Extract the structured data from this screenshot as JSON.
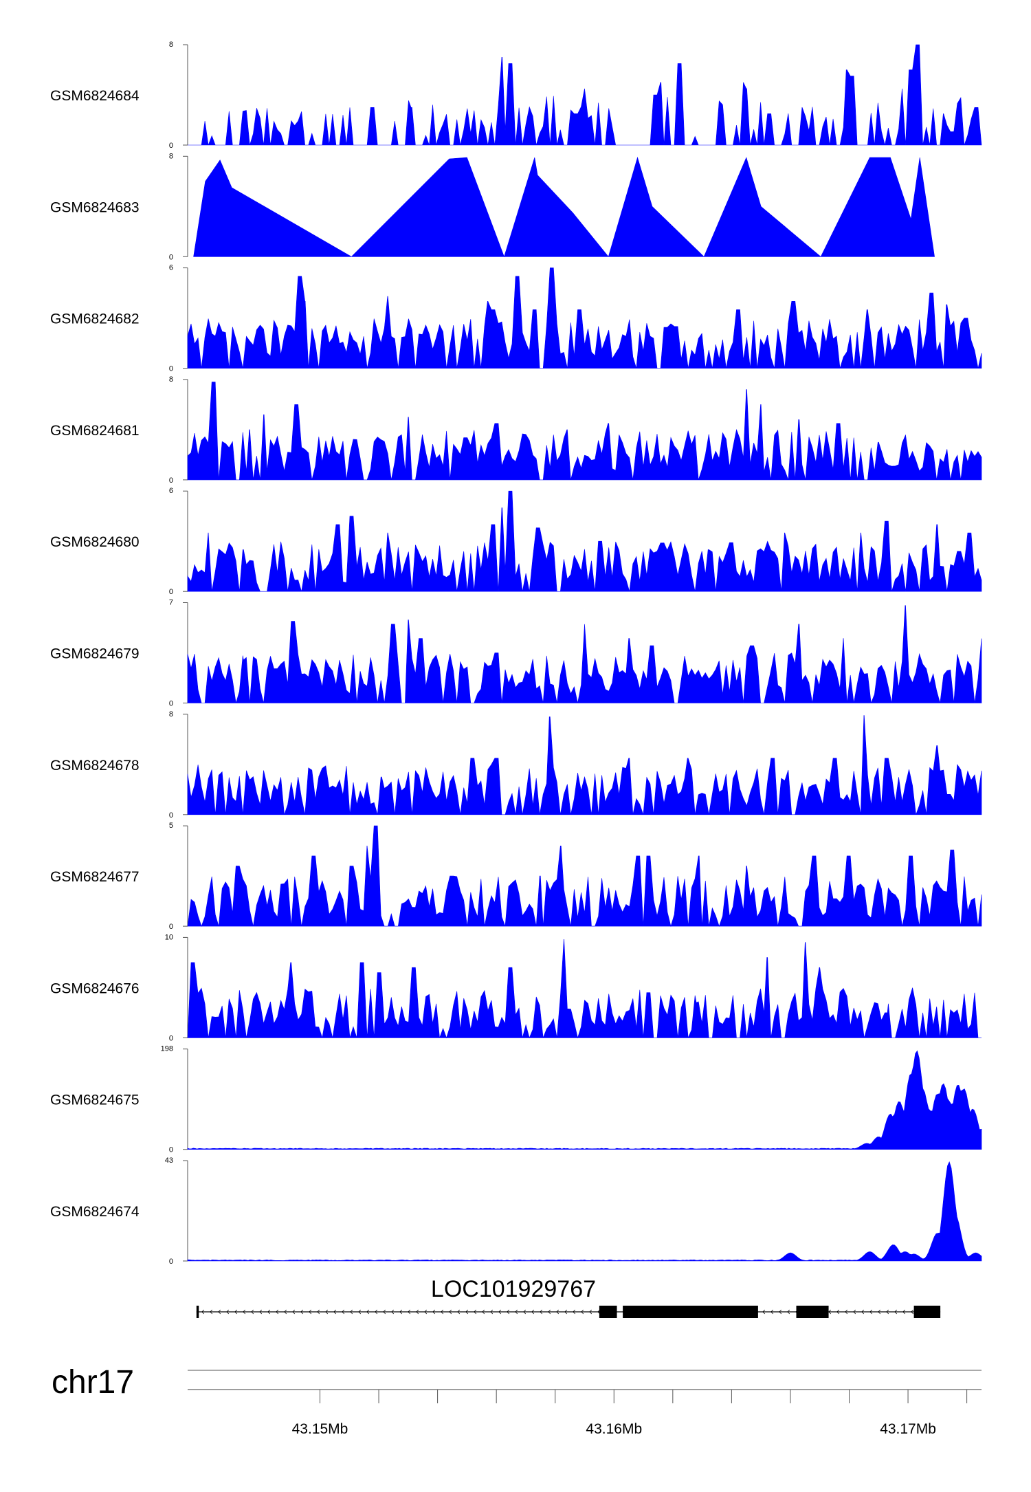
{
  "chart_data": {
    "type": "area",
    "color": "#0000ff",
    "chromosome": "chr17",
    "xlim": [
      43.1455,
      43.1725
    ],
    "x_axis_labels": [
      {
        "value": 43.15,
        "label": "43.15Mb"
      },
      {
        "value": 43.16,
        "label": "43.16Mb"
      },
      {
        "value": 43.17,
        "label": "43.17Mb"
      }
    ],
    "x_minor_ticks": [
      43.152,
      43.154,
      43.156,
      43.158,
      43.162,
      43.164,
      43.166,
      43.168,
      43.172
    ],
    "gene": {
      "name": "LOC101929767",
      "strand": "-",
      "start": 43.1458,
      "end": 43.1711,
      "exons": [
        [
          43.1458,
          43.14588
        ],
        [
          43.1595,
          43.1601
        ],
        [
          43.1603,
          43.1649
        ],
        [
          43.1662,
          43.1673
        ],
        [
          43.1702,
          43.1711
        ]
      ]
    },
    "tracks": [
      {
        "name": "GSM6824684",
        "ymax": 8,
        "ymin": 0,
        "label_max": "8",
        "label_min": "0",
        "profile": "sparse",
        "start": 43.1455,
        "end": 43.1725,
        "peaks": [
          [
            43.1518,
            3
          ],
          [
            43.1531,
            3
          ],
          [
            43.1562,
            7.0
          ],
          [
            43.1565,
            6.5
          ],
          [
            43.1587,
            2.5
          ],
          [
            43.159,
            4.5
          ],
          [
            43.1614,
            4.0
          ],
          [
            43.1616,
            5.0
          ],
          [
            43.1622,
            6.5
          ],
          [
            43.1644,
            5.0
          ],
          [
            43.1645,
            4.5
          ],
          [
            43.1653,
            2.5
          ],
          [
            43.1664,
            3.0
          ],
          [
            43.1679,
            6.0
          ],
          [
            43.1681,
            5.5
          ],
          [
            43.1698,
            4.5
          ],
          [
            43.1701,
            6.0
          ],
          [
            43.1703,
            8.0
          ],
          [
            43.1712,
            2.5
          ],
          [
            43.1723,
            3.0
          ]
        ]
      },
      {
        "name": "GSM6824683",
        "ymax": 8,
        "ymin": 0,
        "label_max": "8",
        "label_min": "0",
        "profile": "triangles",
        "start": 43.1457,
        "end": 43.1709,
        "peaks": [
          [
            43.1461,
            6.0
          ],
          [
            43.1466,
            7.7
          ],
          [
            43.147,
            5.5
          ],
          [
            43.1544,
            7.8
          ],
          [
            43.155,
            7.9
          ],
          [
            43.1573,
            7.9
          ],
          [
            43.1574,
            6.5
          ],
          [
            43.1586,
            3.5
          ],
          [
            43.1608,
            7.9
          ],
          [
            43.1613,
            4.0
          ],
          [
            43.1645,
            7.9
          ],
          [
            43.165,
            4.0
          ],
          [
            43.1687,
            7.9
          ],
          [
            43.1694,
            7.9
          ],
          [
            43.1701,
            3.0
          ],
          [
            43.1704,
            7.9
          ]
        ]
      },
      {
        "name": "GSM6824682",
        "ymax": 6,
        "ymin": 0,
        "label_max": "6",
        "label_min": "0",
        "profile": "dense",
        "start": 43.1455,
        "end": 43.1725,
        "peaks": [
          [
            43.1493,
            5.5
          ],
          [
            43.1495,
            4.0
          ],
          [
            43.1523,
            4.3
          ],
          [
            43.1557,
            4.0
          ],
          [
            43.1559,
            3.5
          ],
          [
            43.1567,
            5.5
          ],
          [
            43.1573,
            3.5
          ],
          [
            43.1579,
            6.0
          ],
          [
            43.1588,
            3.5
          ],
          [
            43.1621,
            2.5
          ],
          [
            43.1642,
            3.5
          ],
          [
            43.1661,
            4.0
          ],
          [
            43.1686,
            3.5
          ],
          [
            43.1708,
            4.5
          ],
          [
            43.1713,
            3.8
          ],
          [
            43.172,
            3.0
          ]
        ]
      },
      {
        "name": "GSM6824681",
        "ymax": 8,
        "ymin": 0,
        "label_max": "8",
        "label_min": "0",
        "profile": "dense",
        "start": 43.1455,
        "end": 43.1725,
        "peaks": [
          [
            43.1464,
            7.8
          ],
          [
            43.1476,
            4.0
          ],
          [
            43.1481,
            5.2
          ],
          [
            43.1492,
            6.0
          ],
          [
            43.153,
            5.0
          ],
          [
            43.156,
            4.5
          ],
          [
            43.1584,
            4.0
          ],
          [
            43.1598,
            4.5
          ],
          [
            43.1645,
            7.2
          ],
          [
            43.165,
            6.0
          ],
          [
            43.1663,
            4.8
          ],
          [
            43.1676,
            4.5
          ],
          [
            43.169,
            3.0
          ]
        ]
      },
      {
        "name": "GSM6824680",
        "ymax": 6,
        "ymin": 0,
        "label_max": "6",
        "label_min": "0",
        "profile": "dense",
        "start": 43.1455,
        "end": 43.1725,
        "peaks": [
          [
            43.1462,
            3.5
          ],
          [
            43.1474,
            2.5
          ],
          [
            43.1506,
            4.0
          ],
          [
            43.1511,
            4.5
          ],
          [
            43.1523,
            3.5
          ],
          [
            43.1559,
            4.0
          ],
          [
            43.1562,
            5.0
          ],
          [
            43.1565,
            6.0
          ],
          [
            43.1574,
            3.8
          ],
          [
            43.1595,
            3.0
          ],
          [
            43.1618,
            2.5
          ],
          [
            43.1632,
            2.5
          ],
          [
            43.1658,
            3.5
          ],
          [
            43.1684,
            3.5
          ],
          [
            43.1693,
            4.2
          ],
          [
            43.171,
            4.0
          ],
          [
            43.1721,
            3.5
          ]
        ]
      },
      {
        "name": "GSM6824679",
        "ymax": 7,
        "ymin": 0,
        "label_max": "7",
        "label_min": "0",
        "profile": "dense",
        "start": 43.1455,
        "end": 43.1725,
        "peaks": [
          [
            43.1474,
            3.0
          ],
          [
            43.1491,
            5.7
          ],
          [
            43.1525,
            5.5
          ],
          [
            43.153,
            5.8
          ],
          [
            43.1534,
            4.5
          ],
          [
            43.156,
            3.5
          ],
          [
            43.159,
            5.5
          ],
          [
            43.1605,
            4.5
          ],
          [
            43.1613,
            4.0
          ],
          [
            43.1647,
            4.0
          ],
          [
            43.1663,
            5.5
          ],
          [
            43.1678,
            4.5
          ],
          [
            43.1699,
            6.8
          ],
          [
            43.1725,
            4.5
          ]
        ]
      },
      {
        "name": "GSM6824678",
        "ymax": 8,
        "ymin": 0,
        "label_max": "8",
        "label_min": "0",
        "profile": "dense",
        "start": 43.1455,
        "end": 43.1725,
        "peaks": [
          [
            43.1475,
            3.5
          ],
          [
            43.1521,
            3.0
          ],
          [
            43.1552,
            4.5
          ],
          [
            43.156,
            4.5
          ],
          [
            43.1578,
            7.8
          ],
          [
            43.159,
            3.0
          ],
          [
            43.1605,
            4.5
          ],
          [
            43.1625,
            4.5
          ],
          [
            43.1654,
            4.5
          ],
          [
            43.1675,
            4.5
          ],
          [
            43.1685,
            7.9
          ],
          [
            43.1693,
            4.5
          ],
          [
            43.171,
            5.5
          ],
          [
            43.1725,
            3.5
          ]
        ]
      },
      {
        "name": "GSM6824677",
        "ymax": 5,
        "ymin": 0,
        "label_max": "5",
        "label_min": "0",
        "profile": "dense",
        "start": 43.1455,
        "end": 43.1725,
        "peaks": [
          [
            43.1472,
            3.0
          ],
          [
            43.1498,
            3.5
          ],
          [
            43.1511,
            3.0
          ],
          [
            43.1516,
            4.0
          ],
          [
            43.1519,
            5.0
          ],
          [
            43.1545,
            2.5
          ],
          [
            43.1575,
            2.5
          ],
          [
            43.1582,
            4.0
          ],
          [
            43.1608,
            3.5
          ],
          [
            43.1612,
            3.5
          ],
          [
            43.1629,
            3.5
          ],
          [
            43.1645,
            3.0
          ],
          [
            43.1668,
            3.5
          ],
          [
            43.168,
            3.5
          ],
          [
            43.1701,
            3.5
          ],
          [
            43.1715,
            3.8
          ]
        ]
      },
      {
        "name": "GSM6824676",
        "ymax": 10,
        "ymin": 0,
        "label_max": "10",
        "label_min": "0",
        "profile": "dense",
        "start": 43.1455,
        "end": 43.1725,
        "peaks": [
          [
            43.1457,
            7.5
          ],
          [
            43.149,
            7.5
          ],
          [
            43.1514,
            7.5
          ],
          [
            43.152,
            6.5
          ],
          [
            43.1532,
            7.0
          ],
          [
            43.1565,
            7.0
          ],
          [
            43.1583,
            9.8
          ],
          [
            43.1612,
            4.5
          ],
          [
            43.1628,
            3.5
          ],
          [
            43.1652,
            8.0
          ],
          [
            43.1665,
            9.5
          ],
          [
            43.167,
            7.0
          ],
          [
            43.1693,
            2.5
          ]
        ]
      },
      {
        "name": "GSM6824675",
        "ymax": 198,
        "ymin": 0,
        "label_max": "198",
        "label_min": "0",
        "profile": "smooth",
        "start": 43.1455,
        "end": 43.1725,
        "peaks": [
          [
            43.1686,
            12
          ],
          [
            43.169,
            25
          ],
          [
            43.1694,
            70
          ],
          [
            43.1697,
            95
          ],
          [
            43.1701,
            150
          ],
          [
            43.1703,
            195
          ],
          [
            43.1705,
            120
          ],
          [
            43.1707,
            80
          ],
          [
            43.171,
            110
          ],
          [
            43.1712,
            130
          ],
          [
            43.1714,
            95
          ],
          [
            43.1717,
            128
          ],
          [
            43.1719,
            120
          ],
          [
            43.1722,
            80
          ],
          [
            43.1725,
            40
          ]
        ]
      },
      {
        "name": "GSM6824674",
        "ymax": 43,
        "ymin": 0,
        "label_max": "43",
        "label_min": "0",
        "profile": "smooth",
        "start": 43.1455,
        "end": 43.1725,
        "peaks": [
          [
            43.166,
            3.5
          ],
          [
            43.1687,
            4.0
          ],
          [
            43.1695,
            7.0
          ],
          [
            43.1699,
            4.0
          ],
          [
            43.1702,
            3.0
          ],
          [
            43.171,
            12.0
          ],
          [
            43.1714,
            42.5
          ],
          [
            43.1716,
            20.0
          ],
          [
            43.1718,
            4.0
          ],
          [
            43.1723,
            3.5
          ]
        ]
      }
    ]
  }
}
